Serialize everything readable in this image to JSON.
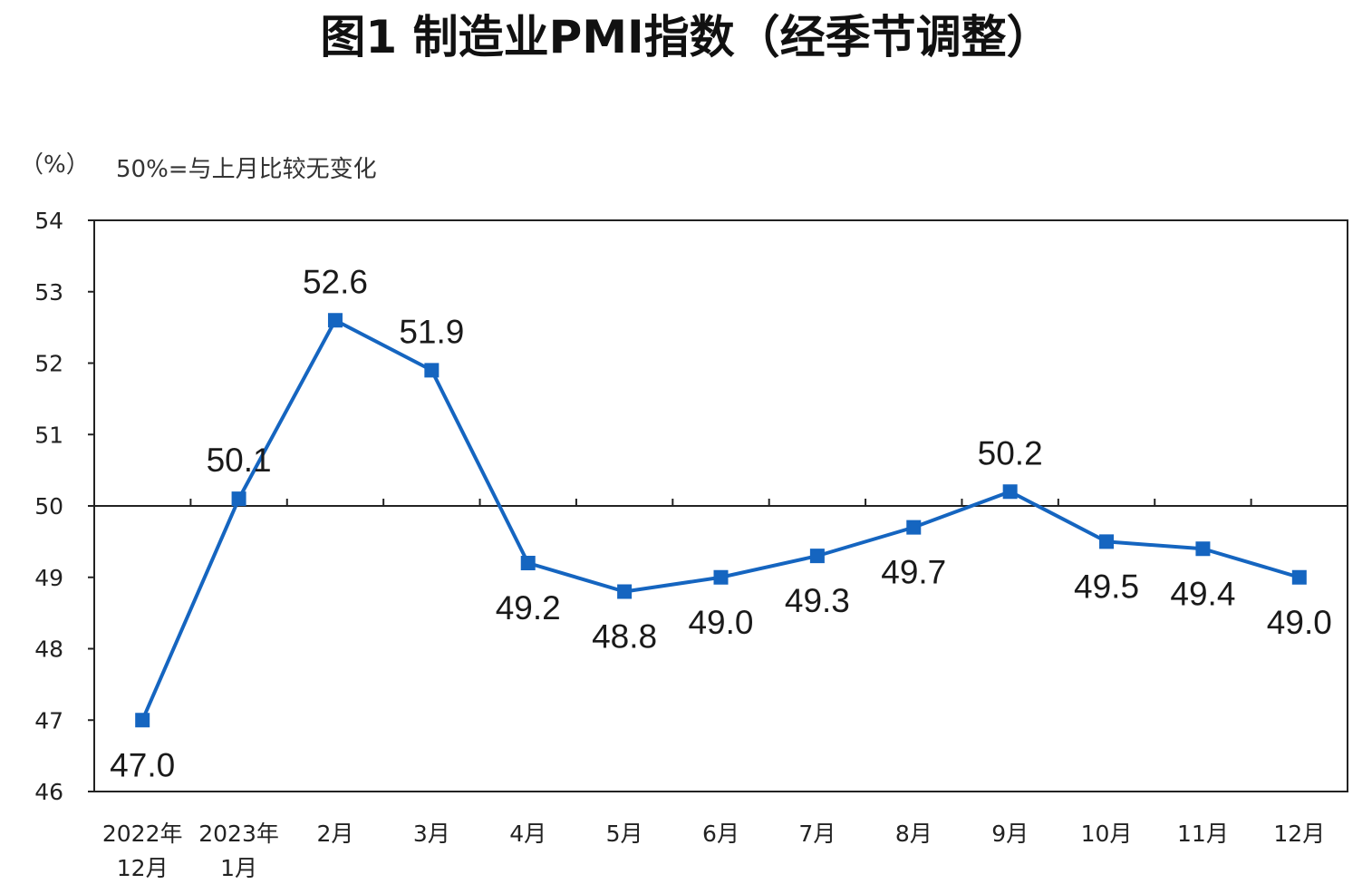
{
  "chart_data": {
    "type": "line",
    "title": "图1 制造业PMI指数（经季节调整）",
    "unit_label": "（%）",
    "note": "50%=与上月比较无变化",
    "categories": [
      [
        "2022年",
        "12月"
      ],
      [
        "2023年",
        "1月"
      ],
      [
        "2月"
      ],
      [
        "3月"
      ],
      [
        "4月"
      ],
      [
        "5月"
      ],
      [
        "6月"
      ],
      [
        "7月"
      ],
      [
        "8月"
      ],
      [
        "9月"
      ],
      [
        "10月"
      ],
      [
        "11月"
      ],
      [
        "12月"
      ]
    ],
    "values": [
      47.0,
      50.1,
      52.6,
      51.9,
      49.2,
      48.8,
      49.0,
      49.3,
      49.7,
      50.2,
      49.5,
      49.4,
      49.0
    ],
    "value_labels": [
      "47.0",
      "50.1",
      "52.6",
      "51.9",
      "49.2",
      "48.8",
      "49.0",
      "49.3",
      "49.7",
      "50.2",
      "49.5",
      "49.4",
      "49.0"
    ],
    "label_positions": [
      "below",
      "above",
      "above",
      "above",
      "below",
      "below",
      "below",
      "below",
      "below",
      "above",
      "below",
      "below",
      "below"
    ],
    "ylim": [
      46,
      54
    ],
    "yticks": [
      "46",
      "47",
      "48",
      "49",
      "50",
      "51",
      "52",
      "53",
      "54"
    ],
    "reference_line": 50,
    "line_color": "#1565C0",
    "marker": "square"
  }
}
